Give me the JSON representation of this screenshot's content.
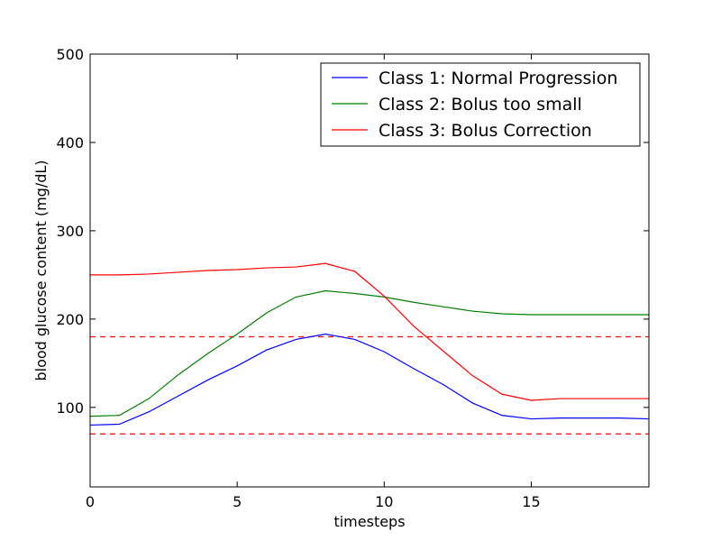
{
  "chart_data": {
    "type": "line",
    "title": "",
    "xlabel": "timesteps",
    "ylabel": "blood glucose content (mg/dL)",
    "xlim": [
      0,
      19
    ],
    "ylim": [
      10,
      500
    ],
    "xticks": [
      0,
      5,
      10,
      15
    ],
    "yticks": [
      100,
      200,
      300,
      400,
      500
    ],
    "x_tick_labels": [
      "0",
      "5",
      "10",
      "15"
    ],
    "y_tick_labels": [
      "100",
      "200",
      "300",
      "400",
      "500"
    ],
    "grid": false,
    "legend_position": "top-right",
    "x": [
      0,
      1,
      2,
      3,
      4,
      5,
      6,
      7,
      8,
      9,
      10,
      11,
      12,
      13,
      14,
      15,
      16,
      17,
      18,
      19
    ],
    "series": [
      {
        "name": "Class 1: Normal Progression",
        "color": "#0000ff",
        "values": [
          80,
          81,
          95,
          113,
          131,
          147,
          165,
          177,
          183,
          177,
          163,
          144,
          126,
          105,
          91,
          87,
          88,
          88,
          88,
          87
        ]
      },
      {
        "name": "Class 2: Bolus too small",
        "color": "#008000",
        "values": [
          90,
          91,
          110,
          137,
          161,
          183,
          207,
          225,
          232,
          229,
          225,
          219,
          214,
          209,
          206,
          205,
          205,
          205,
          205,
          205
        ]
      },
      {
        "name": "Class 3: Bolus Correction",
        "color": "#ff0000",
        "values": [
          250,
          250,
          251,
          253,
          255,
          256,
          258,
          259,
          263,
          254,
          226,
          192,
          164,
          136,
          115,
          108,
          110,
          110,
          110,
          110
        ]
      }
    ],
    "reference_lines": [
      {
        "y": 180,
        "color": "#ff0000",
        "style": "dashed"
      },
      {
        "y": 70,
        "color": "#ff0000",
        "style": "dashed"
      }
    ]
  }
}
